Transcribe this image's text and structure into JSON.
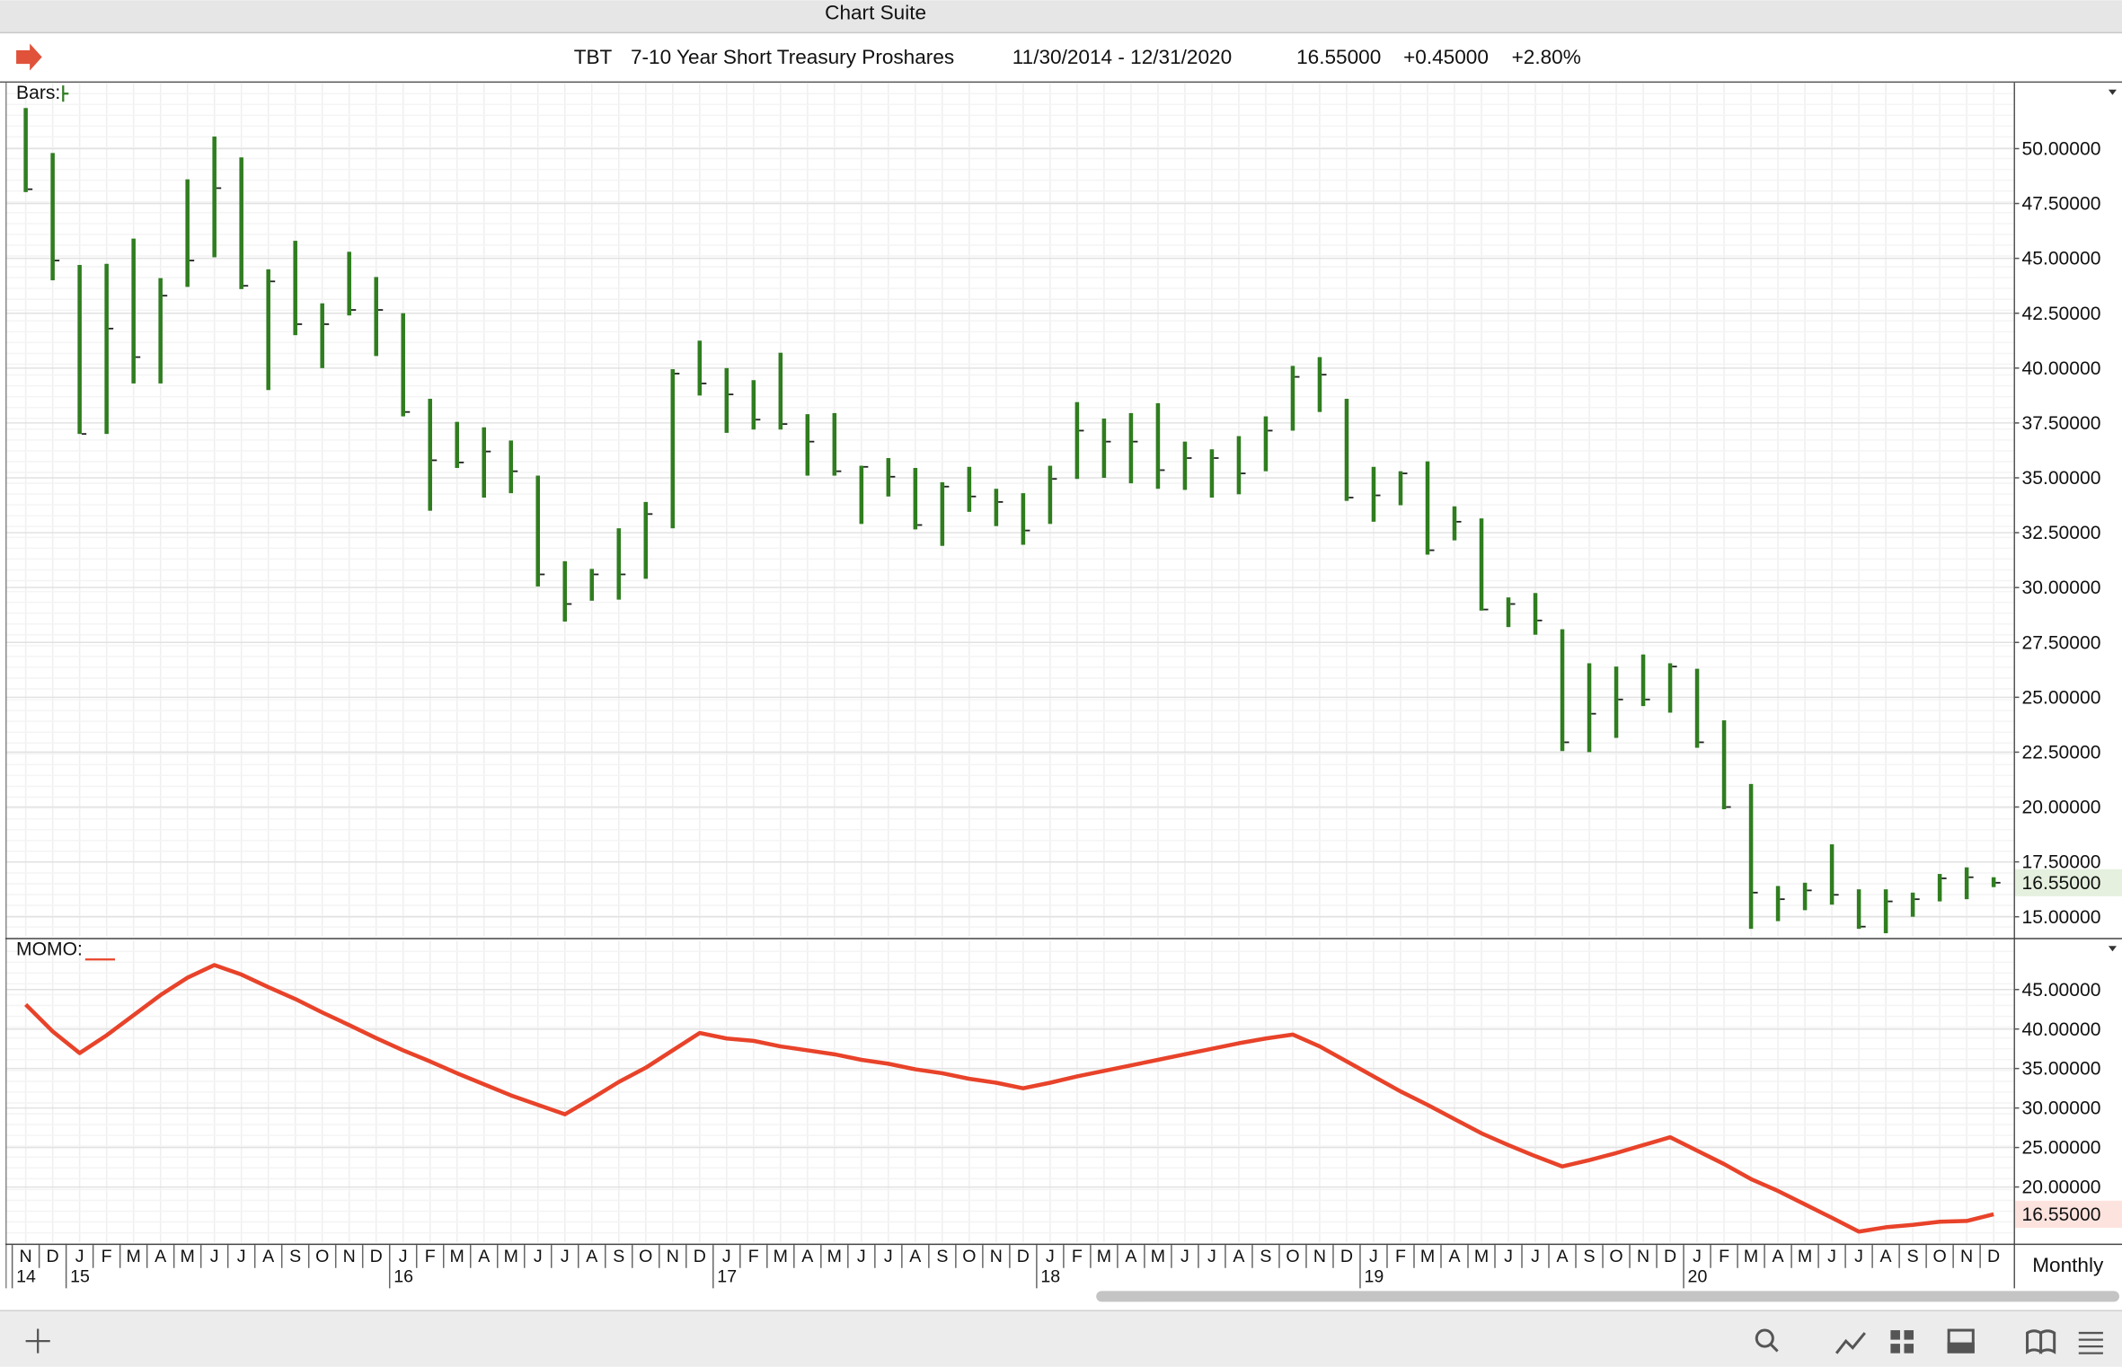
{
  "window": {
    "title": "Chart Suite",
    "symbol": "TBT",
    "name": "7-10 Year Short Treasury Proshares",
    "range": "11/30/2014 - 12/31/2020",
    "last": "16.55000",
    "change": "+0.45000",
    "change_pct": "+2.80%",
    "interval": "Monthly"
  },
  "chart_data": [
    {
      "type": "ohlc",
      "categories": [
        "N",
        "D",
        "J",
        "F",
        "M",
        "A",
        "M",
        "J",
        "J",
        "A",
        "S",
        "O",
        "N",
        "D",
        "J",
        "F",
        "M",
        "A",
        "M",
        "J",
        "J",
        "A",
        "S",
        "O",
        "N",
        "D",
        "J",
        "F",
        "M",
        "A",
        "M",
        "J",
        "J",
        "A",
        "S",
        "O",
        "N",
        "D",
        "J",
        "F",
        "M",
        "A",
        "M",
        "J",
        "J",
        "A",
        "S",
        "O",
        "N",
        "D",
        "J",
        "F",
        "M",
        "A",
        "M",
        "J",
        "J",
        "A",
        "S",
        "O",
        "N",
        "D",
        "J",
        "F",
        "M",
        "A",
        "M",
        "J",
        "J",
        "A",
        "S",
        "O",
        "N",
        "D"
      ],
      "years": [
        "14",
        null,
        "15",
        null,
        null,
        null,
        null,
        null,
        null,
        null,
        null,
        null,
        null,
        null,
        "16",
        null,
        null,
        null,
        null,
        null,
        null,
        null,
        null,
        null,
        null,
        null,
        "17",
        null,
        null,
        null,
        null,
        null,
        null,
        null,
        null,
        null,
        null,
        null,
        "18",
        null,
        null,
        null,
        null,
        null,
        null,
        null,
        null,
        null,
        null,
        null,
        "19",
        null,
        null,
        null,
        null,
        null,
        null,
        null,
        null,
        null,
        null,
        null,
        "20",
        null,
        null,
        null,
        null,
        null,
        null,
        null,
        null,
        null,
        null,
        null
      ],
      "series": [
        {
          "name": "Bars:",
          "color": "#2f7d1f",
          "high": [
            51.85,
            49.8,
            44.7,
            44.75,
            45.9,
            44.1,
            48.6,
            50.55,
            49.6,
            44.5,
            45.8,
            42.95,
            45.3,
            44.15,
            42.5,
            38.6,
            37.55,
            37.3,
            36.7,
            35.1,
            31.2,
            30.85,
            32.7,
            33.9,
            39.95,
            41.25,
            40.0,
            39.45,
            40.7,
            37.9,
            37.95,
            35.55,
            35.9,
            35.45,
            34.8,
            35.5,
            34.5,
            34.3,
            35.55,
            38.45,
            37.7,
            37.95,
            38.4,
            36.65,
            36.3,
            36.9,
            37.8,
            40.1,
            40.5,
            38.6,
            35.5,
            35.3,
            35.75,
            33.7,
            33.15,
            29.55,
            29.75,
            28.1,
            26.55,
            26.4,
            26.95,
            26.55,
            26.3,
            23.95,
            21.05,
            16.4,
            16.55,
            18.3,
            16.25,
            16.25,
            16.1,
            16.95,
            17.25,
            16.8
          ],
          "low": [
            48.02,
            44.0,
            37.0,
            37.0,
            39.3,
            39.3,
            43.7,
            45.05,
            43.6,
            39.0,
            41.5,
            40.0,
            42.4,
            40.55,
            37.8,
            33.5,
            35.45,
            34.1,
            34.3,
            30.05,
            28.45,
            29.4,
            29.45,
            30.4,
            32.7,
            38.75,
            37.05,
            37.2,
            37.2,
            35.1,
            35.1,
            32.9,
            34.15,
            32.65,
            31.9,
            33.45,
            32.8,
            31.95,
            32.9,
            34.95,
            35.0,
            34.75,
            34.5,
            34.45,
            34.1,
            34.25,
            35.3,
            37.15,
            38.0,
            33.95,
            33.0,
            33.75,
            31.5,
            32.15,
            28.95,
            28.2,
            27.85,
            22.55,
            22.5,
            23.15,
            24.6,
            24.3,
            22.7,
            19.9,
            14.45,
            14.8,
            15.3,
            15.55,
            14.45,
            14.25,
            15.0,
            15.7,
            15.8,
            16.35
          ],
          "close": [
            48.15,
            44.9,
            37.0,
            41.8,
            40.5,
            43.3,
            44.9,
            48.2,
            43.75,
            43.95,
            42.0,
            42.0,
            42.65,
            42.65,
            38.0,
            35.8,
            35.7,
            36.2,
            35.3,
            30.6,
            29.25,
            30.6,
            30.6,
            33.35,
            39.75,
            39.3,
            38.8,
            37.65,
            37.45,
            36.65,
            35.3,
            35.5,
            35.05,
            32.85,
            34.6,
            34.15,
            33.9,
            32.6,
            34.95,
            37.15,
            36.65,
            36.65,
            35.35,
            35.9,
            35.9,
            35.2,
            37.15,
            39.6,
            39.7,
            34.1,
            34.2,
            35.2,
            31.7,
            33.0,
            29.0,
            29.25,
            28.5,
            22.95,
            24.25,
            24.9,
            24.9,
            26.4,
            22.95,
            20.0,
            16.1,
            15.8,
            16.2,
            16.0,
            14.55,
            15.7,
            15.8,
            16.75,
            16.8,
            16.55
          ]
        }
      ],
      "last_label": {
        "value": 16.55,
        "label": "16.55000"
      },
      "ylim": [
        14.1,
        53
      ],
      "yticks": [
        {
          "value": 15,
          "label": "15.00000"
        },
        {
          "value": 17.5,
          "label": "17.50000"
        },
        {
          "value": 20,
          "label": "20.00000"
        },
        {
          "value": 22.5,
          "label": "22.50000"
        },
        {
          "value": 25,
          "label": "25.00000"
        },
        {
          "value": 27.5,
          "label": "27.50000"
        },
        {
          "value": 30,
          "label": "30.00000"
        },
        {
          "value": 32.5,
          "label": "32.50000"
        },
        {
          "value": 35,
          "label": "35.00000"
        },
        {
          "value": 37.5,
          "label": "37.50000"
        },
        {
          "value": 40,
          "label": "40.00000"
        },
        {
          "value": 42.5,
          "label": "42.50000"
        },
        {
          "value": 45,
          "label": "45.00000"
        },
        {
          "value": 47.5,
          "label": "47.50000"
        },
        {
          "value": 50,
          "label": "50.00000"
        }
      ],
      "grid": true
    },
    {
      "type": "line",
      "series": [
        {
          "name": "MOMO:",
          "color": "#e8432a",
          "values": [
            43.1,
            39.7,
            36.95,
            39.2,
            41.75,
            44.3,
            46.5,
            48.1,
            46.9,
            45.3,
            43.8,
            42.1,
            40.5,
            38.85,
            37.3,
            35.9,
            34.4,
            33.0,
            31.6,
            30.4,
            29.2,
            31.2,
            33.3,
            35.1,
            37.3,
            39.5,
            38.8,
            38.5,
            37.8,
            37.3,
            36.8,
            36.1,
            35.6,
            34.9,
            34.4,
            33.7,
            33.2,
            32.5,
            33.2,
            34.0,
            34.7,
            35.4,
            36.1,
            36.8,
            37.5,
            38.2,
            38.8,
            39.3,
            37.8,
            35.9,
            34.0,
            32.1,
            30.4,
            28.6,
            26.8,
            25.3,
            23.9,
            22.6,
            23.4,
            24.3,
            25.3,
            26.3,
            24.6,
            22.9,
            21.0,
            19.5,
            17.8,
            16.1,
            14.35,
            14.9,
            15.2,
            15.6,
            15.7,
            16.55
          ]
        }
      ],
      "last_label": {
        "value": 16.55,
        "label": "16.55000"
      },
      "ylim": [
        13,
        51.2
      ],
      "yticks": [
        {
          "value": 20,
          "label": "20.00000"
        },
        {
          "value": 25,
          "label": "25.00000"
        },
        {
          "value": 30,
          "label": "30.00000"
        },
        {
          "value": 35,
          "label": "35.00000"
        },
        {
          "value": 40,
          "label": "40.00000"
        },
        {
          "value": 45,
          "label": "45.00000"
        }
      ],
      "grid": true
    }
  ]
}
